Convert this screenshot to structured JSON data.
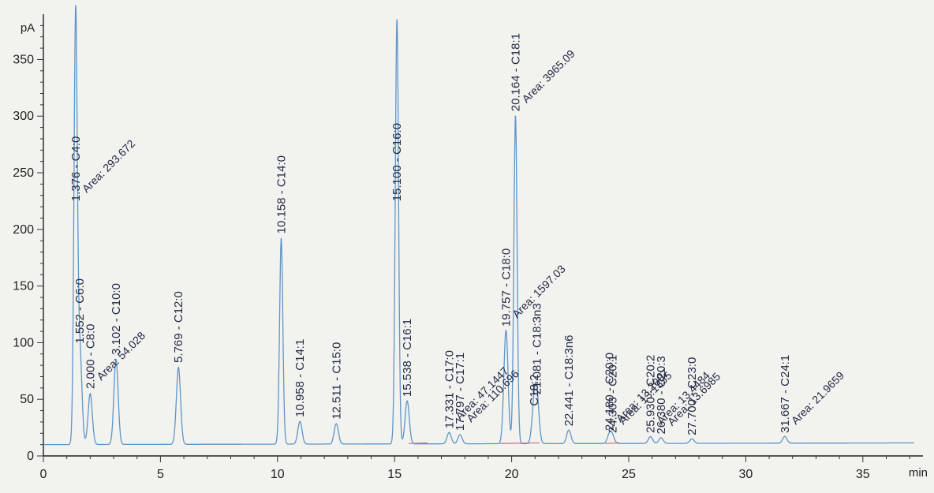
{
  "chart_data": {
    "type": "line",
    "y_unit": "pA",
    "x_unit": "min",
    "xlim": [
      0,
      37.5
    ],
    "ylim": [
      0,
      390
    ],
    "x_ticks": [
      0,
      5,
      10,
      15,
      20,
      25,
      30,
      35
    ],
    "y_ticks": [
      0,
      50,
      100,
      150,
      200,
      250,
      300,
      350
    ],
    "baseline": 10,
    "colors": {
      "trace": "#5f95c8",
      "baseline_line": "#c0607a",
      "label": "#232a45"
    },
    "peaks": [
      {
        "rt": 1.376,
        "height": 385,
        "label": "1.376 - C4:0",
        "area": "Area: 293.672"
      },
      {
        "rt": 1.552,
        "height": 95,
        "label": "1.552 - C6:0",
        "area": ""
      },
      {
        "rt": 2.0,
        "height": 55,
        "label": "2.000 - C8:0",
        "area": "Area: 54.028"
      },
      {
        "rt": 3.102,
        "height": 85,
        "label": "3.102 - C10:0",
        "area": ""
      },
      {
        "rt": 5.769,
        "height": 78,
        "label": "5.769 - C12:0",
        "area": ""
      },
      {
        "rt": 10.158,
        "height": 192,
        "label": "10.158 - C14:0",
        "area": ""
      },
      {
        "rt": 10.958,
        "height": 30,
        "label": "10.958 - C14:1",
        "area": ""
      },
      {
        "rt": 12.511,
        "height": 28,
        "label": "12.511 - C15:0",
        "area": ""
      },
      {
        "rt": 15.1,
        "height": 385,
        "label": "15.100 - C16:0",
        "area": ""
      },
      {
        "rt": 15.538,
        "height": 48,
        "label": "15.538 - C16:1",
        "area": ""
      },
      {
        "rt": 17.331,
        "height": 20,
        "label": "17.331 - C17:0",
        "area": "Area: 47.1447"
      },
      {
        "rt": 17.797,
        "height": 18,
        "label": "17.797 - C17:1",
        "area": "Area: 110.696"
      },
      {
        "rt": 19.757,
        "height": 110,
        "label": "19.757 - C18:0",
        "area": "Area: 1597.03"
      },
      {
        "rt": 20.164,
        "height": 300,
        "label": "20.164 - C18:1",
        "area": "Area: 3965.09"
      },
      {
        "rt": 20.95,
        "height": 40,
        "label": "C18:2",
        "area": ""
      },
      {
        "rt": 21.081,
        "height": 50,
        "label": "21.081 - C18:3n3",
        "area": ""
      },
      {
        "rt": 22.441,
        "height": 22,
        "label": "22.441 - C18:3n6",
        "area": ""
      },
      {
        "rt": 24.18,
        "height": 18,
        "label": "24.180 - C20:0",
        "area": "Area: 13.2007"
      },
      {
        "rt": 24.303,
        "height": 16,
        "label": "24.303 - C20:1",
        "area": "Area: 13.1355"
      },
      {
        "rt": 25.93,
        "height": 16,
        "label": "25.930 - C20:2",
        "area": "Area: 13.4484"
      },
      {
        "rt": 26.38,
        "height": 15,
        "label": "26.380 - C20:3",
        "area": "Area: 13.6985"
      },
      {
        "rt": 27.7,
        "height": 14,
        "label": "27.700 - C23:0",
        "area": ""
      },
      {
        "rt": 31.667,
        "height": 16,
        "label": "31.667 - C24:1",
        "area": "Area: 21.9659"
      }
    ]
  }
}
